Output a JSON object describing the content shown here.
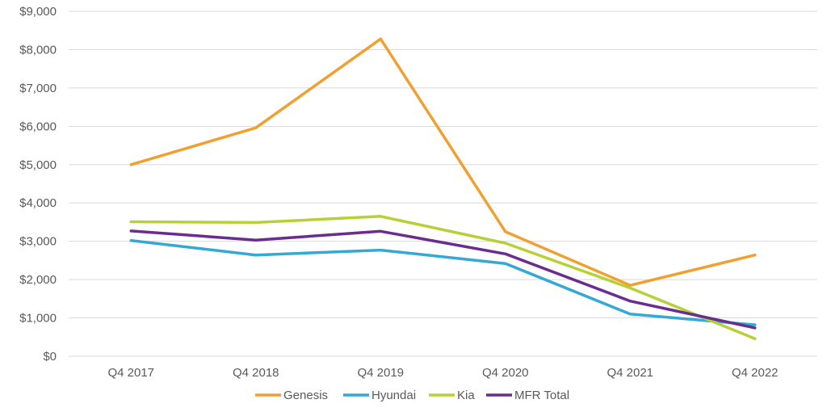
{
  "chart_data": {
    "type": "line",
    "title": "",
    "xlabel": "",
    "ylabel": "",
    "categories": [
      "Q4 2017",
      "Q4 2018",
      "Q4 2019",
      "Q4 2020",
      "Q4 2021",
      "Q4 2022"
    ],
    "ylim": [
      0,
      9000
    ],
    "yticks": [
      0,
      1000,
      2000,
      3000,
      4000,
      5000,
      6000,
      7000,
      8000,
      9000
    ],
    "ytick_labels": [
      "$0",
      "$1,000",
      "$2,000",
      "$3,000",
      "$4,000",
      "$5,000",
      "$6,000",
      "$7,000",
      "$8,000",
      "$9,000"
    ],
    "grid": true,
    "legend_position": "bottom",
    "series": [
      {
        "name": "Genesis",
        "color": "#F0A030",
        "values": [
          5000,
          5960,
          8280,
          3250,
          1850,
          2640
        ]
      },
      {
        "name": "Hyundai",
        "color": "#33A9D4",
        "values": [
          3020,
          2640,
          2770,
          2420,
          1100,
          820
        ]
      },
      {
        "name": "Kia",
        "color": "#B7D035",
        "values": [
          3510,
          3490,
          3650,
          2950,
          1780,
          460
        ]
      },
      {
        "name": "MFR Total",
        "color": "#6A2D8F",
        "values": [
          3270,
          3030,
          3260,
          2670,
          1440,
          740
        ]
      }
    ]
  }
}
